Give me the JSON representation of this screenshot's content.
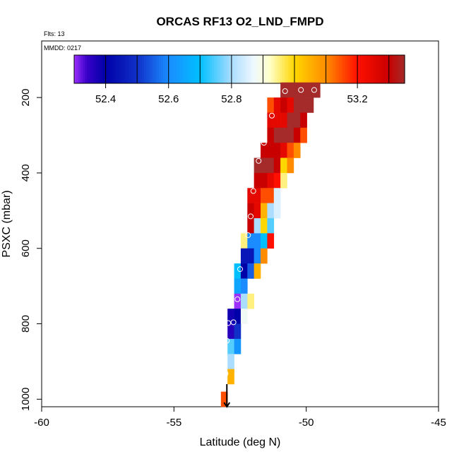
{
  "chart_data": {
    "type": "heatmap",
    "title": "ORCAS RF13 O2_LND_FMPD",
    "flights_note": "Flts: 13",
    "date_note": "MMDD: 0217",
    "xlabel": "Latitude (deg N)",
    "ylabel": "PSXC (mbar)",
    "xlim": [
      -60,
      -45
    ],
    "ylim": [
      1020,
      50
    ],
    "x_ticks": [
      -60,
      -55,
      -50,
      -45
    ],
    "x_tick_labels": [
      "-60",
      "-55",
      "-50",
      "-45"
    ],
    "y_ticks": [
      200,
      400,
      600,
      800,
      1000
    ],
    "y_tick_labels": [
      "200",
      "400",
      "600",
      "800",
      "1000"
    ],
    "cell_width_deg": 0.25,
    "cell_height_mbar": 40,
    "colorbar": {
      "range": [
        52.3,
        53.35
      ],
      "ticks": [
        52.4,
        52.6,
        52.8,
        53.0,
        53.2
      ],
      "tick_labels": [
        "52.4",
        "52.6",
        "52.8",
        "53.0",
        "53.2"
      ],
      "divisions": [
        52.3,
        52.4,
        52.5,
        52.6,
        52.7,
        52.8,
        52.9,
        53.0,
        53.1,
        53.2,
        53.3,
        53.35
      ],
      "stops": [
        {
          "v": 52.3,
          "c": "#9b30ff"
        },
        {
          "v": 52.34,
          "c": "#3a00c8"
        },
        {
          "v": 52.4,
          "c": "#0000a8"
        },
        {
          "v": 52.5,
          "c": "#1030c8"
        },
        {
          "v": 52.6,
          "c": "#1a8cff"
        },
        {
          "v": 52.7,
          "c": "#00bfff"
        },
        {
          "v": 52.8,
          "c": "#aaddff"
        },
        {
          "v": 52.87,
          "c": "#eef8ff"
        },
        {
          "v": 52.92,
          "c": "#ffffcc"
        },
        {
          "v": 53.0,
          "c": "#ffd700"
        },
        {
          "v": 53.1,
          "c": "#ff8c00"
        },
        {
          "v": 53.2,
          "c": "#ff1000"
        },
        {
          "v": 53.3,
          "c": "#c80000"
        },
        {
          "v": 53.35,
          "c": "#a52a2a"
        }
      ]
    },
    "cells": [
      {
        "lat": -50.6,
        "p": 180,
        "v": 53.35
      },
      {
        "lat": -50.35,
        "p": 180,
        "v": 53.35
      },
      {
        "lat": -50.1,
        "p": 180,
        "v": 53.35
      },
      {
        "lat": -49.85,
        "p": 180,
        "v": 53.35
      },
      {
        "lat": -49.6,
        "p": 180,
        "v": 53.35
      },
      {
        "lat": -50.85,
        "p": 180,
        "v": 53.35
      },
      {
        "lat": -51.35,
        "p": 220,
        "v": 53.15
      },
      {
        "lat": -51.1,
        "p": 220,
        "v": 53.25
      },
      {
        "lat": -50.85,
        "p": 220,
        "v": 53.3
      },
      {
        "lat": -50.6,
        "p": 220,
        "v": 53.25
      },
      {
        "lat": -50.35,
        "p": 220,
        "v": 53.35
      },
      {
        "lat": -50.1,
        "p": 220,
        "v": 53.35
      },
      {
        "lat": -49.85,
        "p": 220,
        "v": 53.35
      },
      {
        "lat": -51.35,
        "p": 260,
        "v": 53.25
      },
      {
        "lat": -51.1,
        "p": 260,
        "v": 53.25
      },
      {
        "lat": -50.85,
        "p": 260,
        "v": 53.25
      },
      {
        "lat": -50.6,
        "p": 260,
        "v": 53.35
      },
      {
        "lat": -50.35,
        "p": 260,
        "v": 53.35
      },
      {
        "lat": -50.1,
        "p": 260,
        "v": 53.3
      },
      {
        "lat": -51.35,
        "p": 300,
        "v": 53.3
      },
      {
        "lat": -51.1,
        "p": 300,
        "v": 53.35
      },
      {
        "lat": -50.85,
        "p": 300,
        "v": 53.35
      },
      {
        "lat": -50.6,
        "p": 300,
        "v": 53.35
      },
      {
        "lat": -50.35,
        "p": 300,
        "v": 53.3
      },
      {
        "lat": -50.1,
        "p": 300,
        "v": 53.15
      },
      {
        "lat": -51.6,
        "p": 340,
        "v": 53.3
      },
      {
        "lat": -51.35,
        "p": 340,
        "v": 53.3
      },
      {
        "lat": -51.1,
        "p": 340,
        "v": 53.3
      },
      {
        "lat": -50.85,
        "p": 340,
        "v": 53.25
      },
      {
        "lat": -50.6,
        "p": 340,
        "v": 53.15
      },
      {
        "lat": -50.35,
        "p": 340,
        "v": 53.1
      },
      {
        "lat": -51.85,
        "p": 380,
        "v": 53.35
      },
      {
        "lat": -51.6,
        "p": 380,
        "v": 53.35
      },
      {
        "lat": -51.35,
        "p": 380,
        "v": 53.35
      },
      {
        "lat": -51.1,
        "p": 380,
        "v": 53.3
      },
      {
        "lat": -50.85,
        "p": 380,
        "v": 53.0
      },
      {
        "lat": -50.6,
        "p": 380,
        "v": 53.1
      },
      {
        "lat": -51.85,
        "p": 420,
        "v": 53.3
      },
      {
        "lat": -51.6,
        "p": 420,
        "v": 53.3
      },
      {
        "lat": -51.35,
        "p": 420,
        "v": 53.25
      },
      {
        "lat": -51.1,
        "p": 420,
        "v": 53.2
      },
      {
        "lat": -50.85,
        "p": 420,
        "v": 52.95
      },
      {
        "lat": -52.1,
        "p": 460,
        "v": 53.25
      },
      {
        "lat": -51.85,
        "p": 460,
        "v": 53.25
      },
      {
        "lat": -51.6,
        "p": 460,
        "v": 53.15
      },
      {
        "lat": -51.35,
        "p": 460,
        "v": 53.15
      },
      {
        "lat": -51.1,
        "p": 460,
        "v": 52.85
      },
      {
        "lat": -52.1,
        "p": 500,
        "v": 53.3
      },
      {
        "lat": -51.85,
        "p": 500,
        "v": 53.25
      },
      {
        "lat": -51.6,
        "p": 500,
        "v": 53.05
      },
      {
        "lat": -51.35,
        "p": 500,
        "v": 52.8
      },
      {
        "lat": -51.1,
        "p": 500,
        "v": 52.85
      },
      {
        "lat": -52.1,
        "p": 540,
        "v": 53.3
      },
      {
        "lat": -51.85,
        "p": 540,
        "v": 52.8
      },
      {
        "lat": -51.6,
        "p": 540,
        "v": 53.0
      },
      {
        "lat": -51.35,
        "p": 540,
        "v": 52.75
      },
      {
        "lat": -52.35,
        "p": 580,
        "v": 52.95
      },
      {
        "lat": -52.1,
        "p": 580,
        "v": 52.6
      },
      {
        "lat": -51.85,
        "p": 580,
        "v": 52.6
      },
      {
        "lat": -51.6,
        "p": 580,
        "v": 52.7
      },
      {
        "lat": -51.35,
        "p": 580,
        "v": 53.2
      },
      {
        "lat": -52.35,
        "p": 620,
        "v": 52.45
      },
      {
        "lat": -52.1,
        "p": 620,
        "v": 52.45
      },
      {
        "lat": -51.85,
        "p": 620,
        "v": 52.6
      },
      {
        "lat": -51.6,
        "p": 620,
        "v": 53.1
      },
      {
        "lat": -52.6,
        "p": 660,
        "v": 52.7
      },
      {
        "lat": -52.35,
        "p": 660,
        "v": 52.4
      },
      {
        "lat": -52.1,
        "p": 660,
        "v": 52.55
      },
      {
        "lat": -51.85,
        "p": 660,
        "v": 53.05
      },
      {
        "lat": -52.6,
        "p": 700,
        "v": 52.65
      },
      {
        "lat": -52.35,
        "p": 700,
        "v": 52.6
      },
      {
        "lat": -52.6,
        "p": 740,
        "v": 52.3
      },
      {
        "lat": -52.35,
        "p": 740,
        "v": 52.8
      },
      {
        "lat": -52.1,
        "p": 740,
        "v": 52.95
      },
      {
        "lat": -52.85,
        "p": 780,
        "v": 52.38
      },
      {
        "lat": -52.6,
        "p": 780,
        "v": 52.4
      },
      {
        "lat": -52.35,
        "p": 780,
        "v": 52.88
      },
      {
        "lat": -52.85,
        "p": 820,
        "v": 52.36
      },
      {
        "lat": -52.6,
        "p": 820,
        "v": 52.5
      },
      {
        "lat": -52.85,
        "p": 860,
        "v": 52.75
      },
      {
        "lat": -52.6,
        "p": 860,
        "v": 52.62
      },
      {
        "lat": -52.85,
        "p": 900,
        "v": 52.8
      },
      {
        "lat": -52.85,
        "p": 940,
        "v": 53.05
      },
      {
        "lat": -53.1,
        "p": 1000,
        "v": 53.15
      }
    ],
    "observations": [
      {
        "lat": -50.8,
        "p": 183
      },
      {
        "lat": -50.2,
        "p": 180
      },
      {
        "lat": -49.7,
        "p": 180
      },
      {
        "lat": -51.3,
        "p": 248
      },
      {
        "lat": -51.6,
        "p": 320
      },
      {
        "lat": -51.8,
        "p": 368
      },
      {
        "lat": -52.0,
        "p": 448
      },
      {
        "lat": -52.1,
        "p": 515
      },
      {
        "lat": -52.2,
        "p": 565
      },
      {
        "lat": -52.5,
        "p": 655
      },
      {
        "lat": -52.6,
        "p": 735
      },
      {
        "lat": -52.95,
        "p": 798
      },
      {
        "lat": -52.75,
        "p": 796
      },
      {
        "lat": -53.0,
        "p": 845
      },
      {
        "lat": -53.05,
        "p": 932
      }
    ],
    "arrow": {
      "lat": -53.0,
      "p_start": 960,
      "p_end": 1020
    }
  }
}
